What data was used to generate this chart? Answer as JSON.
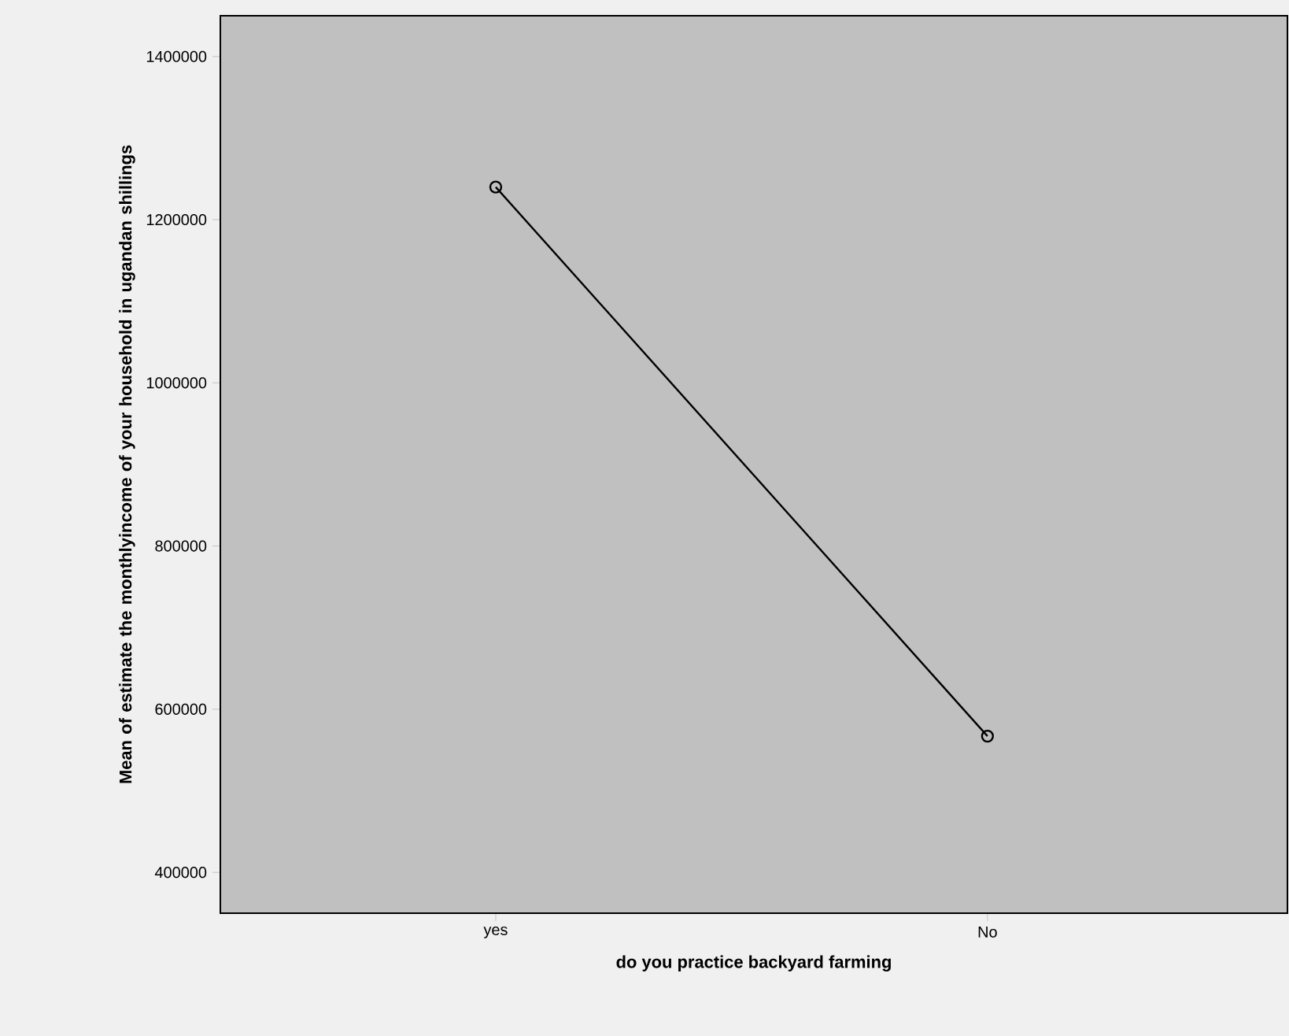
{
  "chart_data": {
    "type": "line",
    "xlabel": "do you practice backyard farming",
    "ylabel": "Mean of estimate the monthlyincome of your household in ugandan shillings",
    "categories": [
      "yes",
      "No"
    ],
    "series": [
      {
        "color": "#000000",
        "values": [
          1240000,
          567000
        ]
      }
    ],
    "ylim": [
      350000,
      1450000
    ],
    "yticks": [
      {
        "value": 400000,
        "label": "400000"
      },
      {
        "value": 600000,
        "label": "600000"
      },
      {
        "value": 800000,
        "label": "800000"
      },
      {
        "value": 1000000,
        "label": "1000000"
      },
      {
        "value": 1200000,
        "label": "1200000"
      },
      {
        "value": 1400000,
        "label": "1400000"
      }
    ],
    "marker": "circle",
    "line_style": "solid"
  }
}
